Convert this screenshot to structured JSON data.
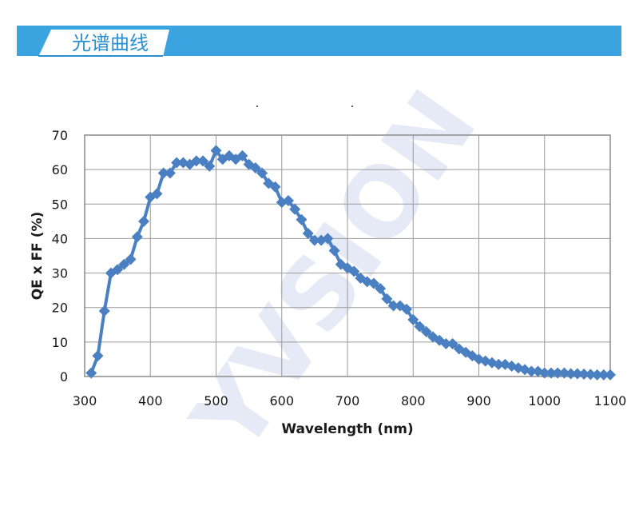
{
  "header": {
    "title": "光谱曲线",
    "bar_color": "#3ba3df",
    "tab_color": "#2a8fd0"
  },
  "watermark": {
    "text": "YVSION"
  },
  "chart_data": {
    "type": "line",
    "title": "",
    "xlabel": "Wavelength (nm)",
    "ylabel": "QE x FF (%)",
    "xlim": [
      300,
      1100
    ],
    "ylim": [
      0,
      70
    ],
    "x_ticks": [
      300,
      400,
      500,
      600,
      700,
      800,
      900,
      1000,
      1100
    ],
    "y_ticks": [
      0,
      10,
      20,
      30,
      40,
      50,
      60,
      70
    ],
    "x_tick_labels": [
      "300",
      "400",
      "500",
      "600",
      "700",
      "800",
      "900",
      "1000",
      "1100"
    ],
    "y_tick_labels": [
      "0",
      "10",
      "20",
      "30",
      "40",
      "50",
      "60",
      "70"
    ],
    "grid": true,
    "series_color": "#4a7fc1",
    "marker": "diamond",
    "series": [
      {
        "x": [
          310,
          320,
          330,
          340,
          350,
          360,
          370,
          380,
          390,
          400,
          410,
          420,
          430,
          440,
          450,
          460,
          470,
          480,
          490,
          500,
          510,
          520,
          530,
          540,
          550,
          560,
          570,
          580,
          590,
          600,
          610,
          620,
          630,
          640,
          650,
          660,
          670,
          680,
          690,
          700,
          710,
          720,
          730,
          740,
          750,
          760,
          770,
          780,
          790,
          800,
          810,
          820,
          830,
          840,
          850,
          860,
          870,
          880,
          890,
          900,
          910,
          920,
          930,
          940,
          950,
          960,
          970,
          980,
          990,
          1000,
          1010,
          1020,
          1030,
          1040,
          1050,
          1060,
          1070,
          1080,
          1090,
          1100
        ],
        "y": [
          1,
          6,
          19,
          30,
          31,
          32.5,
          34,
          40.5,
          45,
          52,
          53,
          59,
          59,
          62,
          62,
          61.5,
          62.5,
          62.5,
          61,
          65.5,
          63,
          64,
          63,
          64,
          61.5,
          60.5,
          59,
          56,
          55,
          50.5,
          51,
          48.5,
          45.5,
          41.5,
          39.5,
          39.5,
          40,
          36.5,
          32.5,
          31.5,
          30.5,
          28.5,
          27.5,
          27,
          25.5,
          22.5,
          20.5,
          20.5,
          19.5,
          16.5,
          14.5,
          13,
          11.5,
          10.5,
          9.5,
          9.5,
          8,
          7,
          6,
          5,
          4.5,
          4,
          3.5,
          3.5,
          3,
          2.5,
          2,
          1.5,
          1.5,
          1,
          1,
          1,
          1,
          0.8,
          0.8,
          0.7,
          0.6,
          0.5,
          0.5,
          0.5
        ]
      }
    ]
  }
}
